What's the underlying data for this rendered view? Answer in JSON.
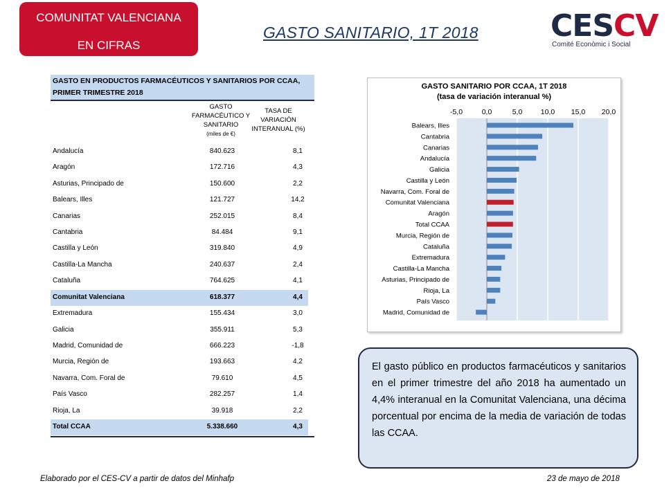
{
  "header": {
    "badge_line1": "COMUNITAT VALENCIANA",
    "badge_line2": "EN CIFRAS",
    "page_title": "GASTO SANITARIO, 1T 2018",
    "logo_ces": "CES",
    "logo_cv": "CV",
    "logo_subtitle": "Comité Econòmic i Social"
  },
  "table": {
    "title": "GASTO EN PRODUCTOS FARMACÉUTICOS Y SANITARIOS POR CCAA, PRIMER TRIMESTRE 2018",
    "col1_header": "GASTO FARMACÉUTICO Y SANITARIO",
    "col1_unit": "(miles de €)",
    "col2_header": "TASA DE VARIACIÓN INTERANUAL (%)",
    "rows": [
      {
        "name": "Andalucía",
        "value": "840.623",
        "rate": "8,1"
      },
      {
        "name": "Aragón",
        "value": "172.716",
        "rate": "4,3"
      },
      {
        "name": "Asturias, Principado de",
        "value": "150.600",
        "rate": "2,2"
      },
      {
        "name": "Balears, Illes",
        "value": "121.727",
        "rate": "14,2"
      },
      {
        "name": "Canarias",
        "value": "252.015",
        "rate": "8,4"
      },
      {
        "name": "Cantabria",
        "value": "84.484",
        "rate": "9,1"
      },
      {
        "name": "Castilla y León",
        "value": "319.840",
        "rate": "4,9"
      },
      {
        "name": "Castilla-La Mancha",
        "value": "240.637",
        "rate": "2,4"
      },
      {
        "name": "Cataluña",
        "value": "764.625",
        "rate": "4,1"
      },
      {
        "name": "Comunitat Valenciana",
        "value": "618.377",
        "rate": "4,4"
      },
      {
        "name": "Extremadura",
        "value": "155.434",
        "rate": "3,0"
      },
      {
        "name": "Galicia",
        "value": "355.911",
        "rate": "5,3"
      },
      {
        "name": "Madrid, Comunidad de",
        "value": "666.223",
        "rate": "-1,8"
      },
      {
        "name": "Murcia, Región de",
        "value": "193.663",
        "rate": "4,2"
      },
      {
        "name": "Navarra, Com. Foral de",
        "value": "79.610",
        "rate": "4,5"
      },
      {
        "name": "País Vasco",
        "value": "282.257",
        "rate": "1,4"
      },
      {
        "name": "Rioja, La",
        "value": "39.918",
        "rate": "2,2"
      },
      {
        "name": "Total CCAA",
        "value": "5.338.660",
        "rate": "4,3"
      }
    ]
  },
  "chart_data": {
    "type": "bar",
    "orientation": "horizontal",
    "title": "GASTO SANITARIO POR CCAA, 1T 2018",
    "subtitle": "(tasa de variación interanual %)",
    "xlim": [
      -5,
      20
    ],
    "xticks": [
      "-5,0",
      "0,0",
      "5,0",
      "10,0",
      "15,0",
      "20,0"
    ],
    "grid": true,
    "categories": [
      "Balears, Illes",
      "Cantabria",
      "Canarias",
      "Andalucía",
      "Galicia",
      "Castilla y León",
      "Navarra, Com. Foral de",
      "Comunitat Valenciana",
      "Aragón",
      "Total CCAA",
      "Murcia, Región de",
      "Cataluña",
      "Extremadura",
      "Castilla-La Mancha",
      "Asturias, Principado de",
      "Rioja, La",
      "País Vasco",
      "Madrid, Comunidad de"
    ],
    "values": [
      14.2,
      9.1,
      8.4,
      8.1,
      5.3,
      4.9,
      4.5,
      4.4,
      4.3,
      4.3,
      4.2,
      4.1,
      3.0,
      2.4,
      2.2,
      2.2,
      1.4,
      -1.8
    ],
    "highlight": [
      "Comunitat Valenciana",
      "Total CCAA"
    ],
    "colors": {
      "bar": "#4f81bd",
      "highlight": "#c0202e",
      "plot_bg": "#dce6f2",
      "grid": "#ffffff"
    }
  },
  "note": {
    "text": "El gasto público en productos farmacéuticos y sanitarios en el primer trimestre del año 2018 ha aumentado un 4,4% interanual en la Comunitat Valenciana, una décima porcentual por encima de la media de variación de todas las CCAA."
  },
  "footer": {
    "source": "Elaborado por el CES-CV a partir de datos del Minhafp",
    "date": "23 de mayo de 2018"
  }
}
